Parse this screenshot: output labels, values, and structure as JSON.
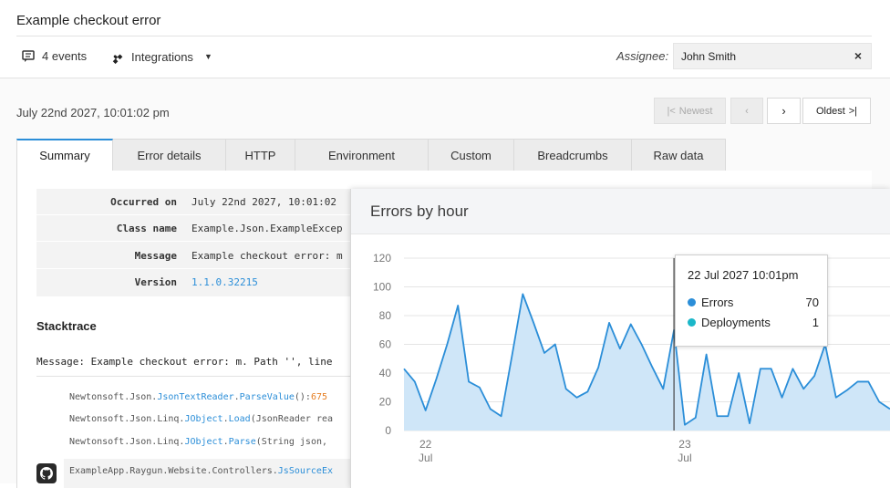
{
  "page": {
    "title": "Example checkout error"
  },
  "toolbar": {
    "events_label": "4 events",
    "integrations_label": "Integrations",
    "assignee_label": "Assignee:",
    "assignee_value": "John Smith",
    "clear_label": "×"
  },
  "occurrence": {
    "timestamp": "July 22nd 2027, 10:01:02 pm",
    "newest_label": "Newest",
    "oldest_label": "Oldest"
  },
  "tabs": [
    {
      "label": "Summary",
      "active": true
    },
    {
      "label": "Error details"
    },
    {
      "label": "HTTP"
    },
    {
      "label": "Environment"
    },
    {
      "label": "Custom"
    },
    {
      "label": "Breadcrumbs"
    },
    {
      "label": "Raw data"
    }
  ],
  "summary": {
    "rows": [
      {
        "key": "Occurred on",
        "value": "July 22nd 2027, 10:01:02"
      },
      {
        "key": "Class name",
        "value": "Example.Json.ExampleExcep"
      },
      {
        "key": "Message",
        "value": "Example checkout error: m"
      },
      {
        "key": "Version",
        "value": "1.1.0.32215"
      }
    ]
  },
  "stacktrace": {
    "title": "Stacktrace",
    "message": "Message: Example checkout error: m. Path '', line",
    "frames": [
      {
        "prefix": "Newtonsoft.Json.",
        "cls": "JsonTextReader",
        "sep": ".",
        "method": "ParseValue",
        "rest": "():",
        "line": "675"
      },
      {
        "prefix": "Newtonsoft.Json.Linq.",
        "cls": "JObject",
        "sep": ".",
        "method": "Load",
        "rest": "(JsonReader rea",
        "line": ""
      },
      {
        "prefix": "Newtonsoft.Json.Linq.",
        "cls": "JObject",
        "sep": ".",
        "method": "Parse",
        "rest": "(String json,",
        "line": ""
      },
      {
        "prefix": "ExampleApp.Raygun.Website.Controllers.",
        "cls": "JsSourceEx",
        "sep": "",
        "method": "",
        "rest": "",
        "line": ""
      }
    ]
  },
  "popup": {
    "title": "Errors by hour"
  },
  "chart_data": {
    "type": "area",
    "title": "Errors by hour",
    "y_ticks": [
      0,
      20,
      40,
      60,
      80,
      100,
      120
    ],
    "ylim": [
      0,
      120
    ],
    "x_ticks": [
      {
        "day": "22",
        "month": "Jul",
        "hour": 2
      },
      {
        "day": "23",
        "month": "Jul",
        "hour": 26
      }
    ],
    "xlim": [
      0,
      45
    ],
    "series": [
      {
        "name": "Errors",
        "color": "#2b8ed8",
        "values": [
          43,
          34,
          14,
          36,
          60,
          87,
          34,
          30,
          15,
          10,
          52,
          95,
          75,
          54,
          60,
          29,
          23,
          27,
          44,
          75,
          57,
          74,
          60,
          44,
          29,
          70,
          4,
          9,
          53,
          10,
          10,
          40,
          5,
          43,
          43,
          23,
          43,
          29,
          38,
          60,
          23,
          28,
          34,
          34,
          20,
          15
        ]
      }
    ],
    "tooltip": {
      "title": "22 Jul 2027  10:01pm",
      "hour": 25,
      "items": [
        {
          "name": "Errors",
          "value": "70",
          "color": "#2b8ed8"
        },
        {
          "name": "Deployments",
          "value": "1",
          "color": "#1bb7c9"
        }
      ]
    }
  }
}
